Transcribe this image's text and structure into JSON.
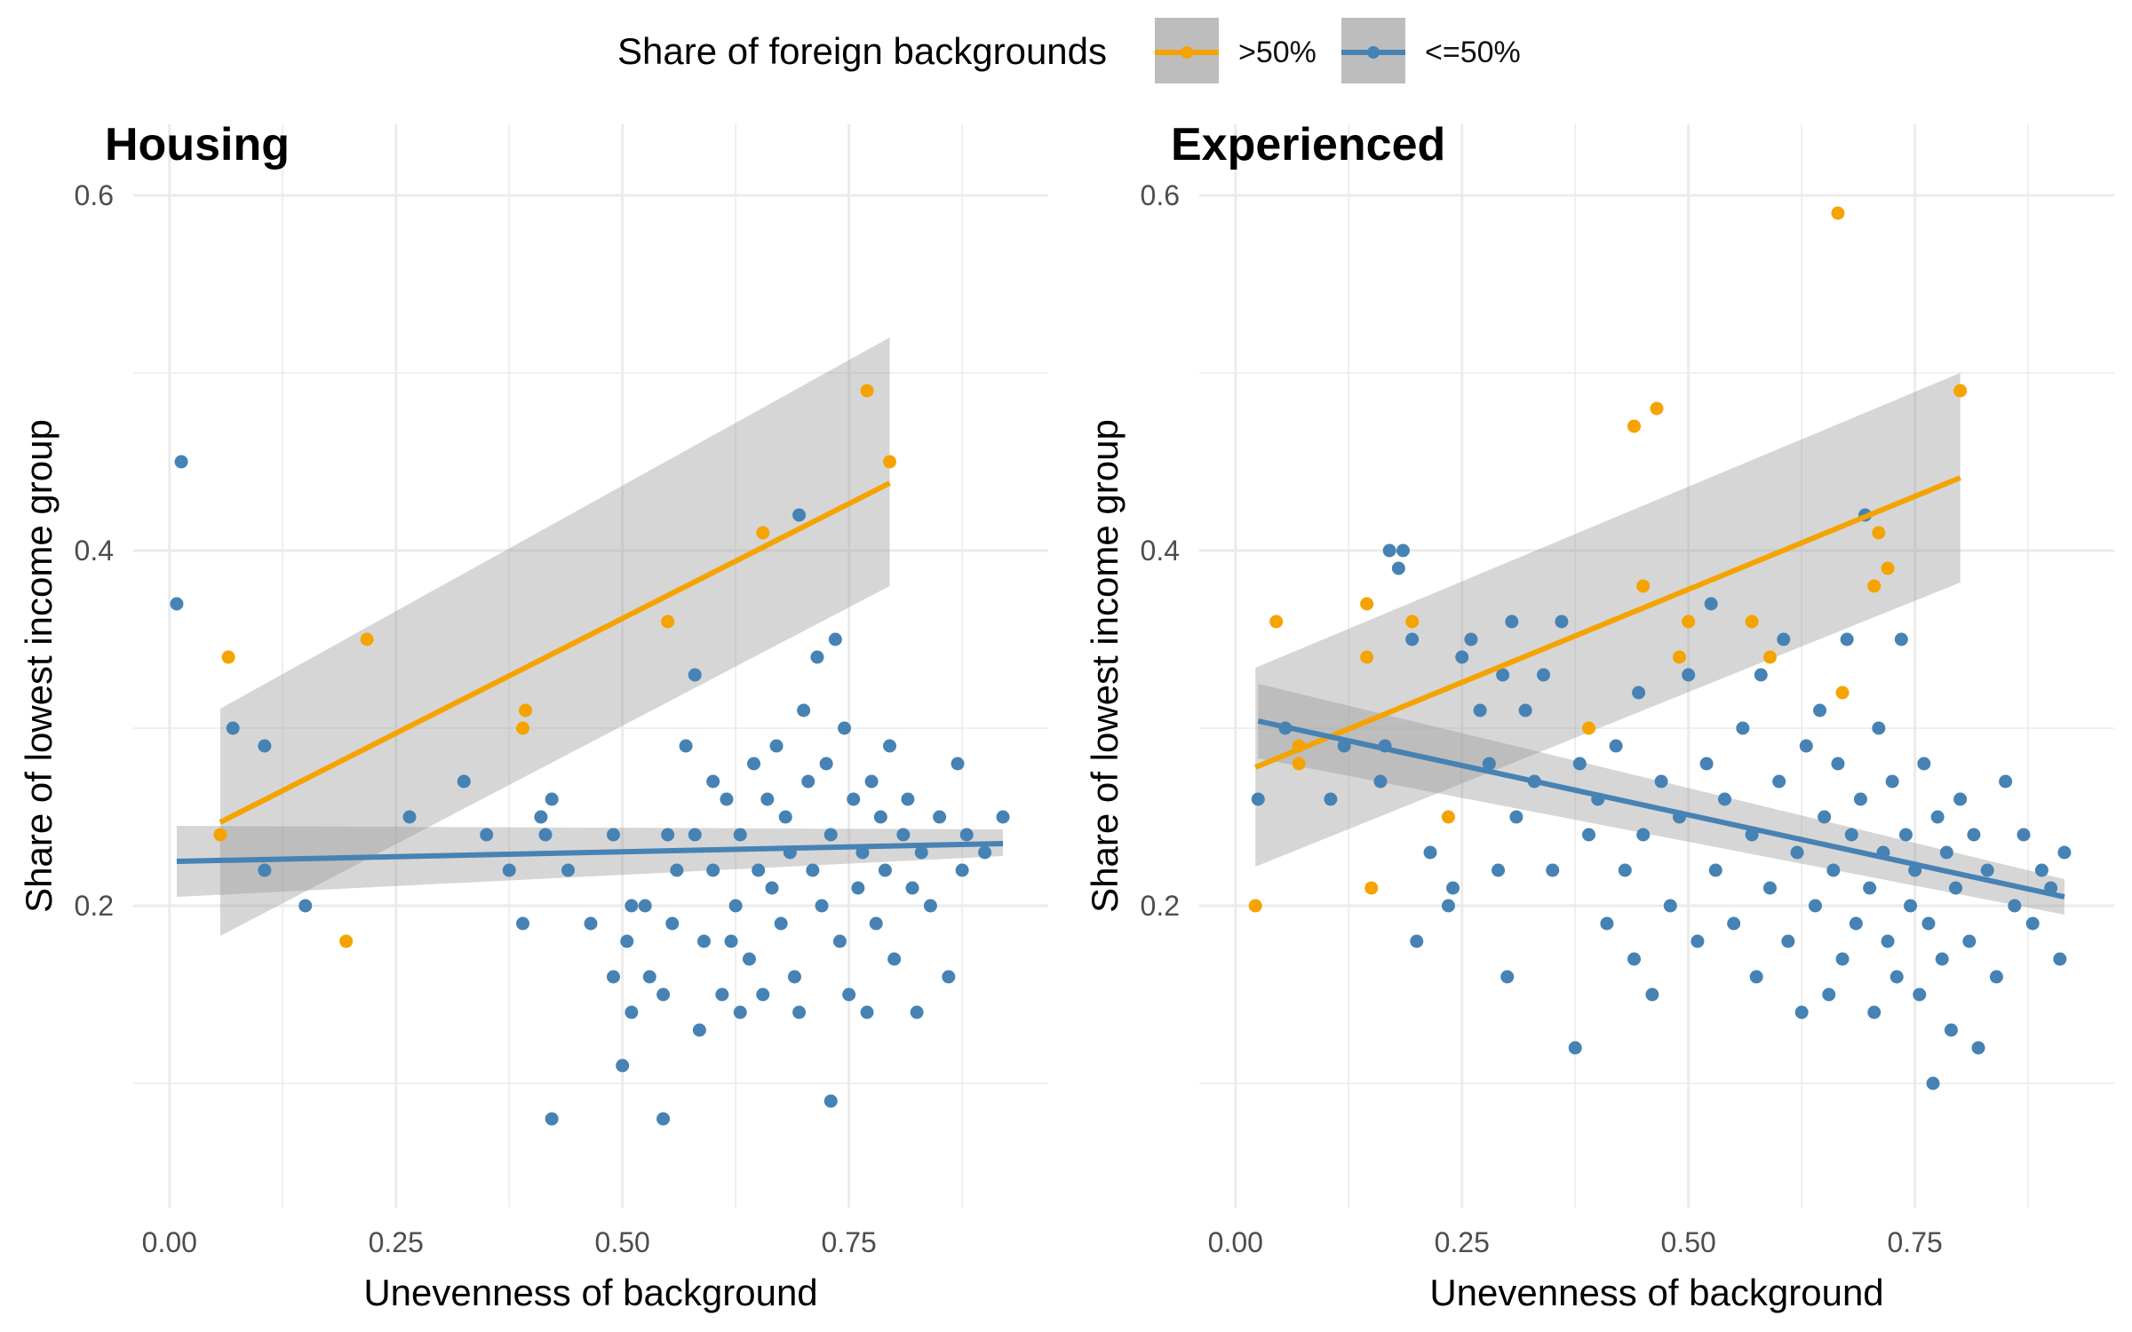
{
  "legend": {
    "title": "Share of foreign backgrounds",
    "items": [
      {
        "label": ">50%",
        "color": "#F5A300"
      },
      {
        "label": "<=50%",
        "color": "#4682B4"
      }
    ]
  },
  "chart_data": [
    {
      "type": "scatter",
      "title": "Housing",
      "xlabel": "Unevenness of background",
      "ylabel": "Share of lowest income group",
      "xlim": [
        -0.04,
        0.97
      ],
      "ylim": [
        0.03,
        0.64
      ],
      "xticks": [
        0.0,
        0.25,
        0.5,
        0.75
      ],
      "xtick_labels": [
        "0.00",
        "0.25",
        "0.50",
        "0.75"
      ],
      "yticks": [
        0.2,
        0.4,
        0.6
      ],
      "ytick_labels": [
        "0.2",
        "0.4",
        "0.6"
      ],
      "grid": true,
      "series": [
        {
          "name": ">50%",
          "color": "#F5A300",
          "points": [
            [
              0.056,
              0.24
            ],
            [
              0.065,
              0.34
            ],
            [
              0.195,
              0.18
            ],
            [
              0.218,
              0.35
            ],
            [
              0.39,
              0.3
            ],
            [
              0.393,
              0.31
            ],
            [
              0.55,
              0.36
            ],
            [
              0.655,
              0.41
            ],
            [
              0.77,
              0.49
            ],
            [
              0.795,
              0.45
            ]
          ],
          "fit": {
            "x": [
              0.056,
              0.795
            ],
            "y": [
              0.247,
              0.438
            ],
            "ci_lower": [
              0.183,
              0.38
            ],
            "ci_upper": [
              0.311,
              0.52
            ]
          }
        },
        {
          "name": "<=50%",
          "color": "#4682B4",
          "points": [
            [
              0.008,
              0.37
            ],
            [
              0.013,
              0.45
            ],
            [
              0.07,
              0.3
            ],
            [
              0.105,
              0.29
            ],
            [
              0.105,
              0.22
            ],
            [
              0.15,
              0.2
            ],
            [
              0.265,
              0.25
            ],
            [
              0.325,
              0.27
            ],
            [
              0.35,
              0.24
            ],
            [
              0.375,
              0.22
            ],
            [
              0.39,
              0.19
            ],
            [
              0.41,
              0.25
            ],
            [
              0.415,
              0.24
            ],
            [
              0.422,
              0.26
            ],
            [
              0.44,
              0.22
            ],
            [
              0.422,
              0.08
            ],
            [
              0.465,
              0.19
            ],
            [
              0.49,
              0.24
            ],
            [
              0.49,
              0.16
            ],
            [
              0.5,
              0.11
            ],
            [
              0.505,
              0.18
            ],
            [
              0.51,
              0.14
            ],
            [
              0.51,
              0.2
            ],
            [
              0.525,
              0.2
            ],
            [
              0.53,
              0.16
            ],
            [
              0.545,
              0.08
            ],
            [
              0.545,
              0.15
            ],
            [
              0.55,
              0.24
            ],
            [
              0.555,
              0.19
            ],
            [
              0.56,
              0.22
            ],
            [
              0.57,
              0.29
            ],
            [
              0.58,
              0.24
            ],
            [
              0.58,
              0.33
            ],
            [
              0.585,
              0.13
            ],
            [
              0.59,
              0.18
            ],
            [
              0.6,
              0.22
            ],
            [
              0.6,
              0.27
            ],
            [
              0.61,
              0.15
            ],
            [
              0.615,
              0.26
            ],
            [
              0.62,
              0.18
            ],
            [
              0.625,
              0.2
            ],
            [
              0.63,
              0.24
            ],
            [
              0.63,
              0.14
            ],
            [
              0.64,
              0.17
            ],
            [
              0.645,
              0.28
            ],
            [
              0.65,
              0.22
            ],
            [
              0.655,
              0.15
            ],
            [
              0.66,
              0.26
            ],
            [
              0.665,
              0.21
            ],
            [
              0.67,
              0.29
            ],
            [
              0.675,
              0.19
            ],
            [
              0.68,
              0.25
            ],
            [
              0.685,
              0.23
            ],
            [
              0.69,
              0.16
            ],
            [
              0.695,
              0.14
            ],
            [
              0.695,
              0.42
            ],
            [
              0.7,
              0.31
            ],
            [
              0.705,
              0.27
            ],
            [
              0.71,
              0.22
            ],
            [
              0.715,
              0.34
            ],
            [
              0.72,
              0.2
            ],
            [
              0.725,
              0.28
            ],
            [
              0.73,
              0.09
            ],
            [
              0.73,
              0.24
            ],
            [
              0.735,
              0.35
            ],
            [
              0.74,
              0.18
            ],
            [
              0.745,
              0.3
            ],
            [
              0.75,
              0.15
            ],
            [
              0.755,
              0.26
            ],
            [
              0.76,
              0.21
            ],
            [
              0.765,
              0.23
            ],
            [
              0.77,
              0.14
            ],
            [
              0.775,
              0.27
            ],
            [
              0.78,
              0.19
            ],
            [
              0.785,
              0.25
            ],
            [
              0.79,
              0.22
            ],
            [
              0.795,
              0.29
            ],
            [
              0.8,
              0.17
            ],
            [
              0.81,
              0.24
            ],
            [
              0.815,
              0.26
            ],
            [
              0.82,
              0.21
            ],
            [
              0.825,
              0.14
            ],
            [
              0.83,
              0.23
            ],
            [
              0.84,
              0.2
            ],
            [
              0.85,
              0.25
            ],
            [
              0.86,
              0.16
            ],
            [
              0.87,
              0.28
            ],
            [
              0.875,
              0.22
            ],
            [
              0.88,
              0.24
            ],
            [
              0.9,
              0.23
            ],
            [
              0.92,
              0.25
            ]
          ],
          "fit": {
            "x": [
              0.008,
              0.92
            ],
            "y": [
              0.225,
              0.235
            ],
            "ci_lower": [
              0.205,
              0.228
            ],
            "ci_upper": [
              0.245,
              0.243
            ]
          }
        }
      ]
    },
    {
      "type": "scatter",
      "title": "Experienced",
      "xlabel": "Unevenness of background",
      "ylabel": "Share of lowest income group",
      "xlim": [
        -0.04,
        0.97
      ],
      "ylim": [
        0.03,
        0.64
      ],
      "xticks": [
        0.0,
        0.25,
        0.5,
        0.75
      ],
      "xtick_labels": [
        "0.00",
        "0.25",
        "0.50",
        "0.75"
      ],
      "yticks": [
        0.2,
        0.4,
        0.6
      ],
      "ytick_labels": [
        "0.2",
        "0.4",
        "0.6"
      ],
      "grid": true,
      "series": [
        {
          "name": ">50%",
          "color": "#F5A300",
          "points": [
            [
              0.022,
              0.2
            ],
            [
              0.045,
              0.36
            ],
            [
              0.07,
              0.29
            ],
            [
              0.07,
              0.28
            ],
            [
              0.145,
              0.37
            ],
            [
              0.145,
              0.34
            ],
            [
              0.15,
              0.21
            ],
            [
              0.195,
              0.36
            ],
            [
              0.235,
              0.25
            ],
            [
              0.39,
              0.3
            ],
            [
              0.44,
              0.47
            ],
            [
              0.45,
              0.38
            ],
            [
              0.465,
              0.48
            ],
            [
              0.49,
              0.34
            ],
            [
              0.5,
              0.36
            ],
            [
              0.57,
              0.36
            ],
            [
              0.59,
              0.34
            ],
            [
              0.665,
              0.59
            ],
            [
              0.67,
              0.32
            ],
            [
              0.705,
              0.38
            ],
            [
              0.71,
              0.41
            ],
            [
              0.72,
              0.39
            ],
            [
              0.8,
              0.49
            ]
          ],
          "fit": {
            "x": [
              0.022,
              0.8
            ],
            "y": [
              0.278,
              0.441
            ],
            "ci_lower": [
              0.222,
              0.382
            ],
            "ci_upper": [
              0.334,
              0.5
            ]
          }
        },
        {
          "name": "<=50%",
          "color": "#4682B4",
          "points": [
            [
              0.025,
              0.26
            ],
            [
              0.055,
              0.3
            ],
            [
              0.105,
              0.26
            ],
            [
              0.12,
              0.29
            ],
            [
              0.16,
              0.27
            ],
            [
              0.165,
              0.29
            ],
            [
              0.17,
              0.4
            ],
            [
              0.18,
              0.39
            ],
            [
              0.185,
              0.4
            ],
            [
              0.195,
              0.35
            ],
            [
              0.2,
              0.18
            ],
            [
              0.215,
              0.23
            ],
            [
              0.235,
              0.2
            ],
            [
              0.24,
              0.21
            ],
            [
              0.25,
              0.34
            ],
            [
              0.26,
              0.35
            ],
            [
              0.27,
              0.31
            ],
            [
              0.28,
              0.28
            ],
            [
              0.29,
              0.22
            ],
            [
              0.295,
              0.33
            ],
            [
              0.3,
              0.16
            ],
            [
              0.305,
              0.36
            ],
            [
              0.31,
              0.25
            ],
            [
              0.32,
              0.31
            ],
            [
              0.33,
              0.27
            ],
            [
              0.34,
              0.33
            ],
            [
              0.35,
              0.22
            ],
            [
              0.36,
              0.36
            ],
            [
              0.375,
              0.12
            ],
            [
              0.38,
              0.28
            ],
            [
              0.39,
              0.24
            ],
            [
              0.4,
              0.26
            ],
            [
              0.41,
              0.19
            ],
            [
              0.42,
              0.29
            ],
            [
              0.43,
              0.22
            ],
            [
              0.44,
              0.17
            ],
            [
              0.445,
              0.32
            ],
            [
              0.45,
              0.24
            ],
            [
              0.46,
              0.15
            ],
            [
              0.47,
              0.27
            ],
            [
              0.48,
              0.2
            ],
            [
              0.49,
              0.25
            ],
            [
              0.5,
              0.33
            ],
            [
              0.51,
              0.18
            ],
            [
              0.52,
              0.28
            ],
            [
              0.525,
              0.37
            ],
            [
              0.53,
              0.22
            ],
            [
              0.54,
              0.26
            ],
            [
              0.55,
              0.19
            ],
            [
              0.56,
              0.3
            ],
            [
              0.57,
              0.24
            ],
            [
              0.575,
              0.16
            ],
            [
              0.58,
              0.33
            ],
            [
              0.59,
              0.21
            ],
            [
              0.6,
              0.27
            ],
            [
              0.605,
              0.35
            ],
            [
              0.61,
              0.18
            ],
            [
              0.62,
              0.23
            ],
            [
              0.625,
              0.14
            ],
            [
              0.63,
              0.29
            ],
            [
              0.64,
              0.2
            ],
            [
              0.645,
              0.31
            ],
            [
              0.65,
              0.25
            ],
            [
              0.655,
              0.15
            ],
            [
              0.66,
              0.22
            ],
            [
              0.665,
              0.28
            ],
            [
              0.67,
              0.17
            ],
            [
              0.675,
              0.35
            ],
            [
              0.68,
              0.24
            ],
            [
              0.685,
              0.19
            ],
            [
              0.69,
              0.26
            ],
            [
              0.695,
              0.42
            ],
            [
              0.7,
              0.21
            ],
            [
              0.705,
              0.14
            ],
            [
              0.71,
              0.3
            ],
            [
              0.715,
              0.23
            ],
            [
              0.72,
              0.18
            ],
            [
              0.725,
              0.27
            ],
            [
              0.73,
              0.16
            ],
            [
              0.735,
              0.35
            ],
            [
              0.74,
              0.24
            ],
            [
              0.745,
              0.2
            ],
            [
              0.75,
              0.22
            ],
            [
              0.755,
              0.15
            ],
            [
              0.76,
              0.28
            ],
            [
              0.765,
              0.19
            ],
            [
              0.77,
              0.1
            ],
            [
              0.775,
              0.25
            ],
            [
              0.78,
              0.17
            ],
            [
              0.785,
              0.23
            ],
            [
              0.79,
              0.13
            ],
            [
              0.795,
              0.21
            ],
            [
              0.8,
              0.26
            ],
            [
              0.81,
              0.18
            ],
            [
              0.815,
              0.24
            ],
            [
              0.82,
              0.12
            ],
            [
              0.83,
              0.22
            ],
            [
              0.84,
              0.16
            ],
            [
              0.85,
              0.27
            ],
            [
              0.86,
              0.2
            ],
            [
              0.87,
              0.24
            ],
            [
              0.88,
              0.19
            ],
            [
              0.89,
              0.22
            ],
            [
              0.9,
              0.21
            ],
            [
              0.91,
              0.17
            ],
            [
              0.915,
              0.23
            ]
          ],
          "fit": {
            "x": [
              0.025,
              0.915
            ],
            "y": [
              0.304,
              0.205
            ],
            "ci_lower": [
              0.283,
              0.195
            ],
            "ci_upper": [
              0.325,
              0.215
            ]
          }
        }
      ]
    }
  ]
}
